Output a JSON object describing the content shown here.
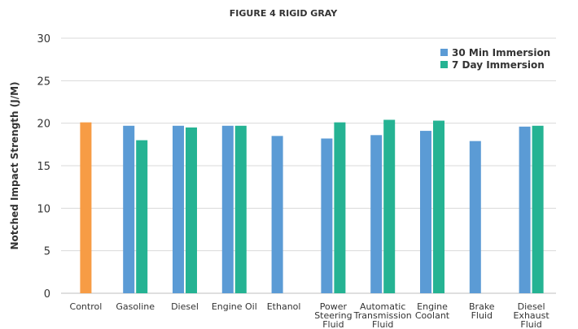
{
  "chart_data": {
    "type": "bar",
    "title": "FIGURE 4 RIGID GRAY",
    "xlabel": "",
    "ylabel": "Notched Impact Strength (J/M)",
    "ylim": [
      0,
      30
    ],
    "yticks": [
      0,
      5,
      10,
      15,
      20,
      25,
      30
    ],
    "grid": true,
    "legend_position": "top-right",
    "categories": [
      [
        "Control"
      ],
      [
        "Gasoline"
      ],
      [
        "Diesel"
      ],
      [
        "Engine Oil"
      ],
      [
        "Ethanol"
      ],
      [
        "Power",
        "Steering",
        "Fluid"
      ],
      [
        "Automatic",
        "Transmission",
        "Fluid"
      ],
      [
        "Engine",
        "Coolant"
      ],
      [
        "Brake",
        "Fluid"
      ],
      [
        "Diesel",
        "Exhaust",
        "Fluid"
      ]
    ],
    "control": {
      "value": 20.1,
      "color": "#F79C45"
    },
    "series": [
      {
        "name": "30 Min Immersion",
        "color": "#5B9BD5",
        "values": [
          null,
          19.7,
          19.7,
          19.7,
          18.5,
          18.2,
          18.6,
          19.1,
          17.9,
          19.6
        ]
      },
      {
        "name": "7 Day Immersion",
        "color": "#25B393",
        "values": [
          null,
          18.0,
          19.5,
          19.7,
          null,
          20.1,
          20.4,
          20.3,
          null,
          19.7
        ]
      }
    ]
  }
}
